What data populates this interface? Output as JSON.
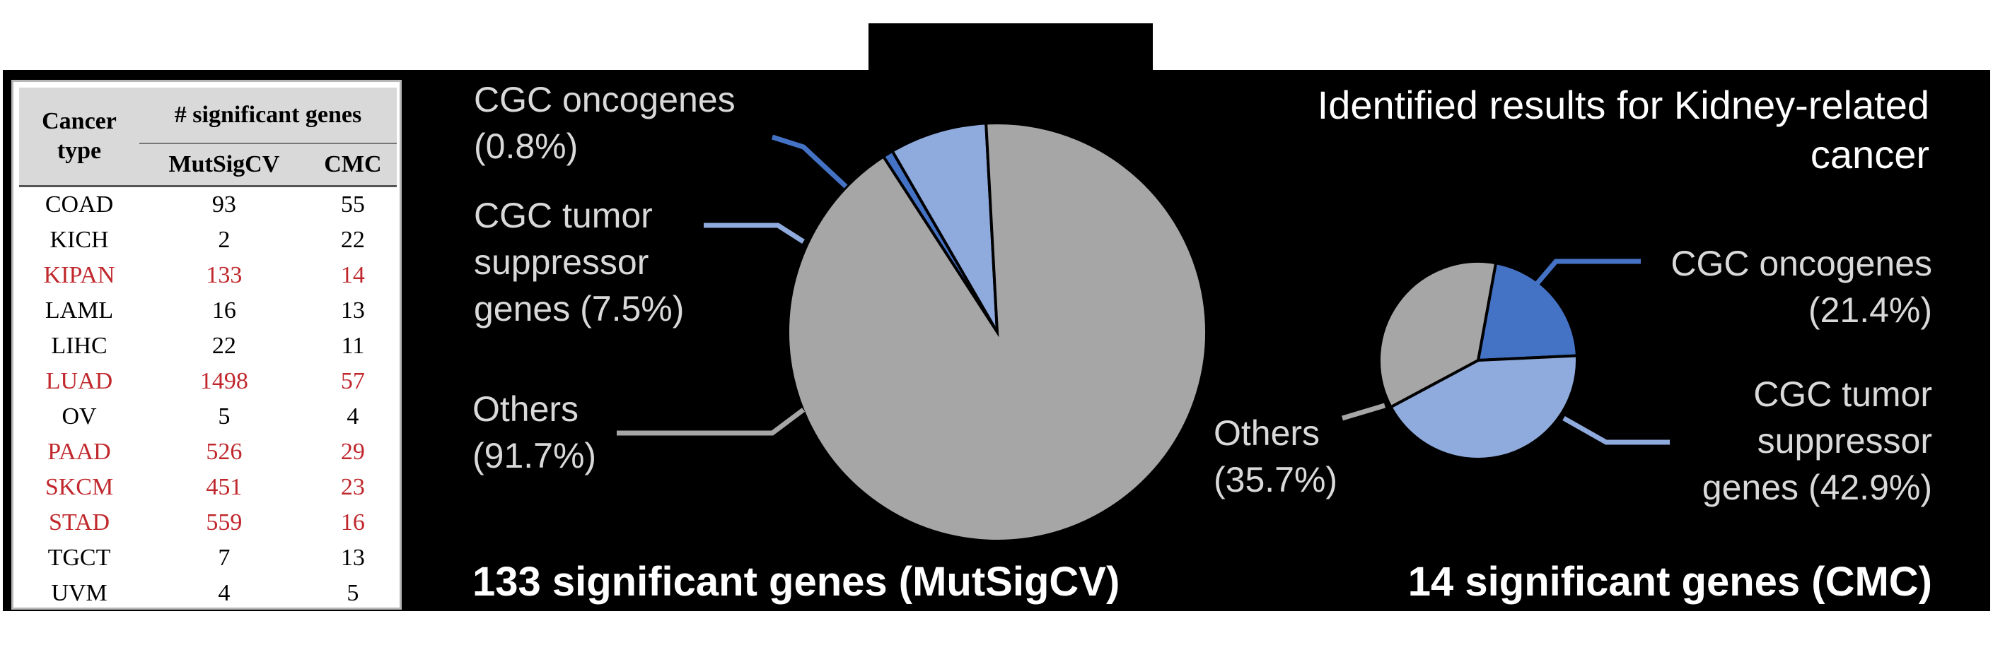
{
  "table": {
    "header_cancer_type": "Cancer type",
    "header_sig_genes": "# significant genes",
    "col_mutsigcv": "MutSigCV",
    "col_cmc": "CMC",
    "rows": [
      {
        "type": "COAD",
        "mutsigcv": "93",
        "cmc": "55",
        "highlight": false
      },
      {
        "type": "KICH",
        "mutsigcv": "2",
        "cmc": "22",
        "highlight": false
      },
      {
        "type": "KIPAN",
        "mutsigcv": "133",
        "cmc": "14",
        "highlight": true
      },
      {
        "type": "LAML",
        "mutsigcv": "16",
        "cmc": "13",
        "highlight": false
      },
      {
        "type": "LIHC",
        "mutsigcv": "22",
        "cmc": "11",
        "highlight": false
      },
      {
        "type": "LUAD",
        "mutsigcv": "1498",
        "cmc": "57",
        "highlight": true
      },
      {
        "type": "OV",
        "mutsigcv": "5",
        "cmc": "4",
        "highlight": false
      },
      {
        "type": "PAAD",
        "mutsigcv": "526",
        "cmc": "29",
        "highlight": true
      },
      {
        "type": "SKCM",
        "mutsigcv": "451",
        "cmc": "23",
        "highlight": true
      },
      {
        "type": "STAD",
        "mutsigcv": "559",
        "cmc": "16",
        "highlight": true
      },
      {
        "type": "TGCT",
        "mutsigcv": "7",
        "cmc": "13",
        "highlight": false
      },
      {
        "type": "UVM",
        "mutsigcv": "4",
        "cmc": "5",
        "highlight": false
      }
    ],
    "highlight_color": "#c0282d"
  },
  "heading": {
    "line1": "Identified results for Kidney-related",
    "line2": "cancer"
  },
  "chart_data": [
    {
      "type": "pie",
      "title": "133 significant genes (MutSigCV)",
      "slices": [
        {
          "label_lines": [
            "CGC oncogenes",
            "(0.8%)"
          ],
          "value": 0.8,
          "color": "#4472c4"
        },
        {
          "label_lines": [
            "CGC tumor",
            "suppressor",
            "genes (7.5%)"
          ],
          "value": 7.5,
          "color": "#8faadc"
        },
        {
          "label_lines": [
            "Others",
            "(91.7%)"
          ],
          "value": 91.7,
          "color": "#a6a6a6"
        }
      ]
    },
    {
      "type": "pie",
      "title": "14 significant genes (CMC)",
      "slices": [
        {
          "label_lines": [
            "CGC oncogenes",
            "(21.4%)"
          ],
          "value": 21.4,
          "color": "#4472c4"
        },
        {
          "label_lines": [
            "CGC tumor",
            "suppressor",
            "genes (42.9%)"
          ],
          "value": 42.9,
          "color": "#8faadc"
        },
        {
          "label_lines": [
            "Others",
            "(35.7%)"
          ],
          "value": 35.7,
          "color": "#a6a6a6"
        }
      ]
    }
  ]
}
